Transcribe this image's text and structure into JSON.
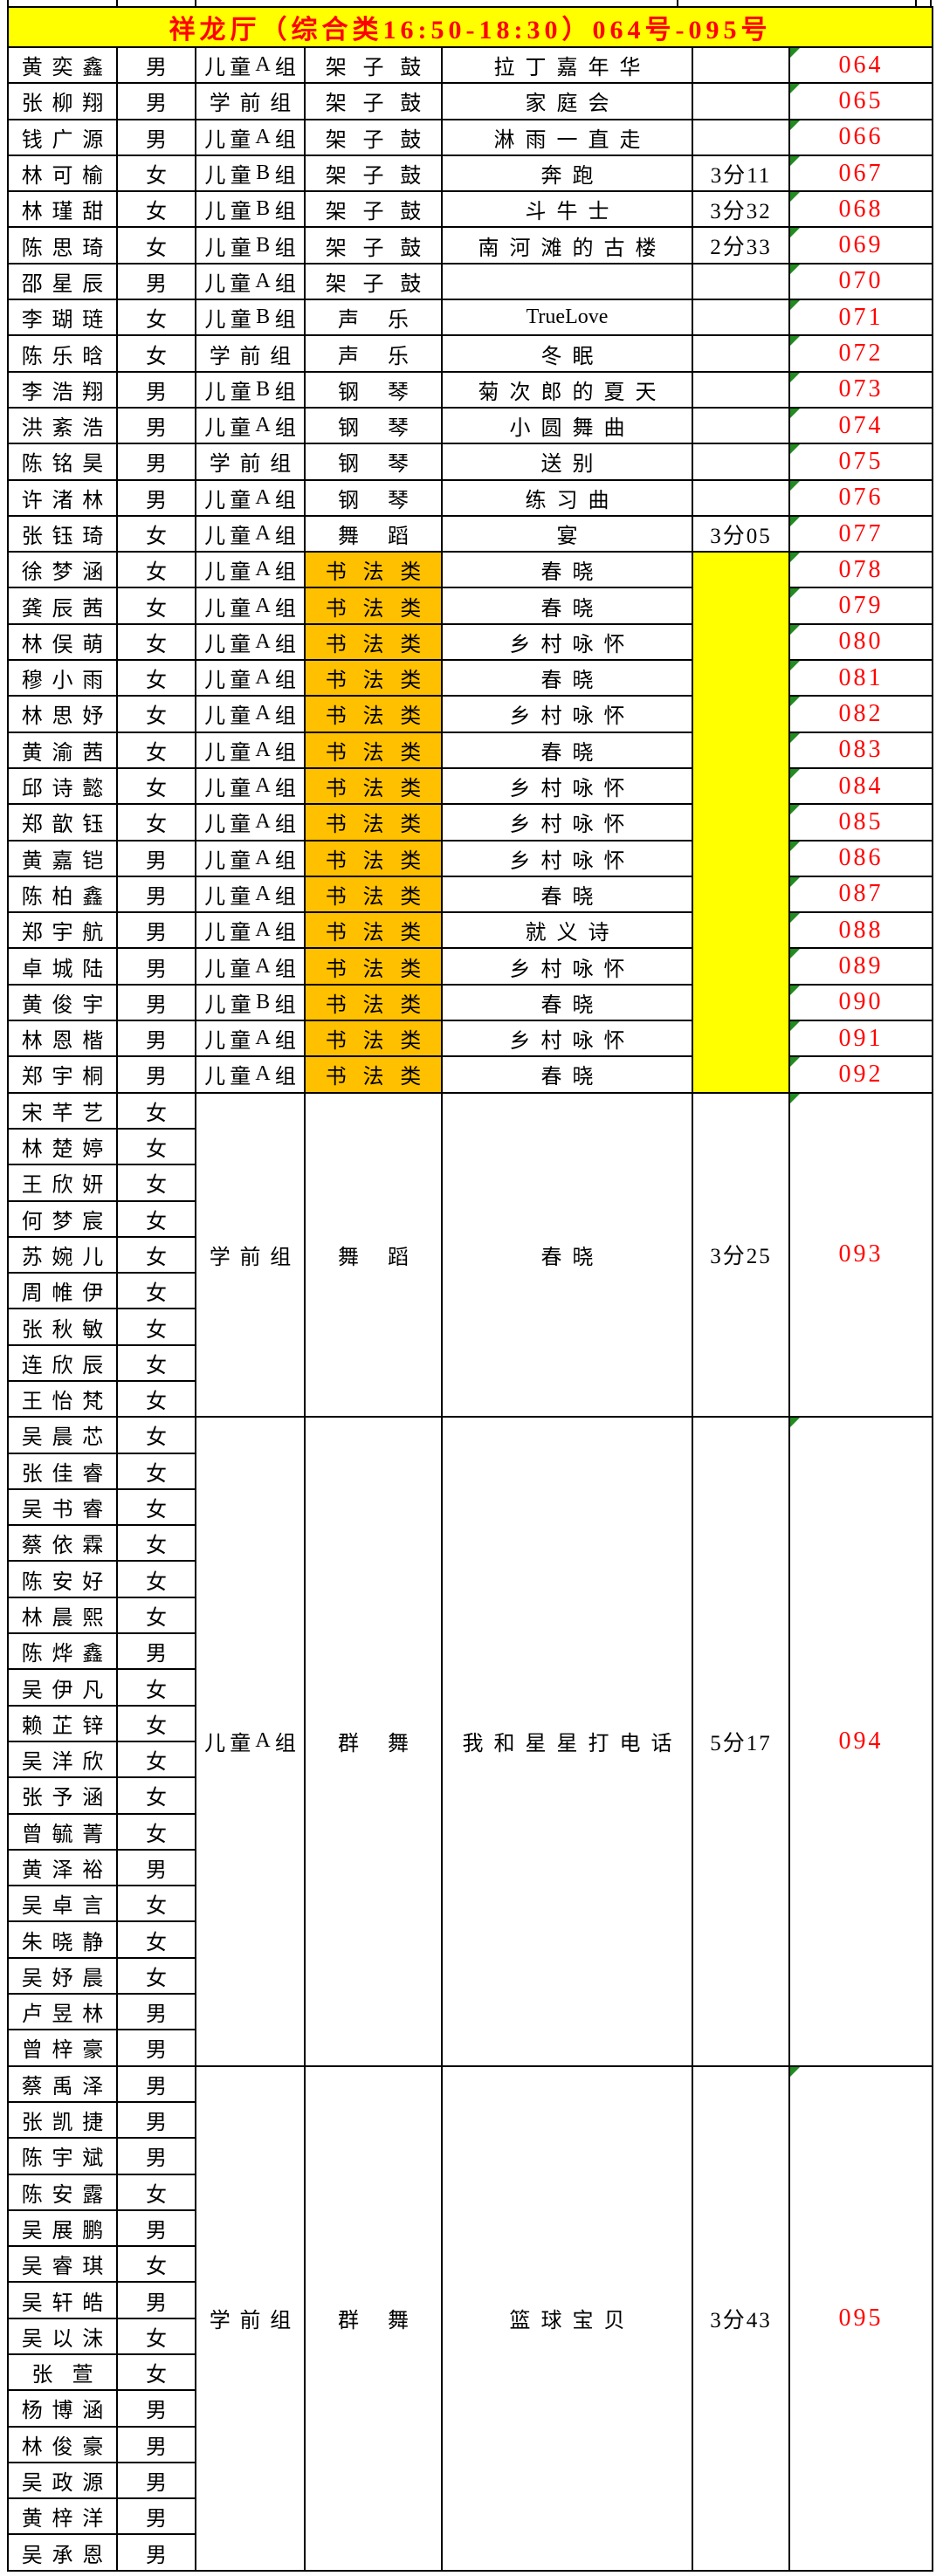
{
  "title": "祥龙厅（综合类16:50-18:30）064号-095号",
  "colors": {
    "title_bg": "#FFFF00",
    "title_text": "#FF0000",
    "entry_number_text": "#FF0000",
    "calligraphy_category_bg": "#FFC000",
    "merged_duration_bg": "#FFFF00",
    "corner_triangle": "#228B22",
    "grid_line": "#000000"
  },
  "sections": [
    {
      "id": "solo-064-077",
      "type": "solo",
      "rows": [
        {
          "name": "黄奕鑫",
          "gender": "男",
          "group": "儿童A组",
          "category": "架子鼓",
          "piece": "拉丁嘉年华",
          "duration": "",
          "number": "064"
        },
        {
          "name": "张柳翔",
          "gender": "男",
          "group": "学前组",
          "category": "架子鼓",
          "piece": "家庭会",
          "duration": "",
          "number": "065"
        },
        {
          "name": "钱广源",
          "gender": "男",
          "group": "儿童A组",
          "category": "架子鼓",
          "piece": "淋雨一直走",
          "duration": "",
          "number": "066"
        },
        {
          "name": "林可榆",
          "gender": "女",
          "group": "儿童B组",
          "category": "架子鼓",
          "piece": "奔跑",
          "duration": "3分11",
          "number": "067"
        },
        {
          "name": "林瑾甜",
          "gender": "女",
          "group": "儿童B组",
          "category": "架子鼓",
          "piece": "斗牛士",
          "duration": "3分32",
          "number": "068"
        },
        {
          "name": "陈思琦",
          "gender": "女",
          "group": "儿童B组",
          "category": "架子鼓",
          "piece": "南河滩的古楼",
          "duration": "2分33",
          "number": "069"
        },
        {
          "name": "邵星辰",
          "gender": "男",
          "group": "儿童A组",
          "category": "架子鼓",
          "piece": "",
          "duration": "",
          "number": "070"
        },
        {
          "name": "李瑚琏",
          "gender": "女",
          "group": "儿童B组",
          "category": "声乐",
          "piece": "TrueLove",
          "duration": "",
          "number": "071"
        },
        {
          "name": "陈乐晗",
          "gender": "女",
          "group": "学前组",
          "category": "声乐",
          "piece": "冬眠",
          "duration": "",
          "number": "072"
        },
        {
          "name": "李浩翔",
          "gender": "男",
          "group": "儿童B组",
          "category": "钢琴",
          "piece": "菊次郎的夏天",
          "duration": "",
          "number": "073"
        },
        {
          "name": "洪紊浩",
          "gender": "男",
          "group": "儿童A组",
          "category": "钢琴",
          "piece": "小圆舞曲",
          "duration": "",
          "number": "074"
        },
        {
          "name": "陈铭昊",
          "gender": "男",
          "group": "学前组",
          "category": "钢琴",
          "piece": "送别",
          "duration": "",
          "number": "075"
        },
        {
          "name": "许渚林",
          "gender": "男",
          "group": "儿童A组",
          "category": "钢琴",
          "piece": "练习曲",
          "duration": "",
          "number": "076"
        },
        {
          "name": "张钰琦",
          "gender": "女",
          "group": "儿童A组",
          "category": "舞蹈",
          "piece": "宴",
          "duration": "3分05",
          "number": "077"
        }
      ]
    },
    {
      "id": "calligraphy-078-092",
      "type": "calligraphy",
      "category_bg": "#FFC000",
      "merged_duration": {
        "text": "",
        "bg": "#FFFF00"
      },
      "rows": [
        {
          "name": "徐梦涵",
          "gender": "女",
          "group": "儿童A组",
          "category": "书法类",
          "piece": "春晓",
          "number": "078"
        },
        {
          "name": "龚辰茜",
          "gender": "女",
          "group": "儿童A组",
          "category": "书法类",
          "piece": "春晓",
          "number": "079"
        },
        {
          "name": "林俣萌",
          "gender": "女",
          "group": "儿童A组",
          "category": "书法类",
          "piece": "乡村咏怀",
          "number": "080"
        },
        {
          "name": "穆小雨",
          "gender": "女",
          "group": "儿童A组",
          "category": "书法类",
          "piece": "春晓",
          "number": "081"
        },
        {
          "name": "林思妤",
          "gender": "女",
          "group": "儿童A组",
          "category": "书法类",
          "piece": "乡村咏怀",
          "number": "082"
        },
        {
          "name": "黄渝茜",
          "gender": "女",
          "group": "儿童A组",
          "category": "书法类",
          "piece": "春晓",
          "number": "083"
        },
        {
          "name": "邱诗懿",
          "gender": "女",
          "group": "儿童A组",
          "category": "书法类",
          "piece": "乡村咏怀",
          "number": "084"
        },
        {
          "name": "郑歆钰",
          "gender": "女",
          "group": "儿童A组",
          "category": "书法类",
          "piece": "乡村咏怀",
          "number": "085"
        },
        {
          "name": "黄嘉铠",
          "gender": "男",
          "group": "儿童A组",
          "category": "书法类",
          "piece": "乡村咏怀",
          "number": "086"
        },
        {
          "name": "陈柏鑫",
          "gender": "男",
          "group": "儿童A组",
          "category": "书法类",
          "piece": "春晓",
          "number": "087"
        },
        {
          "name": "郑宇航",
          "gender": "男",
          "group": "儿童A组",
          "category": "书法类",
          "piece": "就义诗",
          "number": "088"
        },
        {
          "name": "卓城陆",
          "gender": "男",
          "group": "儿童A组",
          "category": "书法类",
          "piece": "乡村咏怀",
          "number": "089"
        },
        {
          "name": "黄俊宇",
          "gender": "男",
          "group": "儿童B组",
          "category": "书法类",
          "piece": "春晓",
          "number": "090"
        },
        {
          "name": "林恩楷",
          "gender": "男",
          "group": "儿童A组",
          "category": "书法类",
          "piece": "乡村咏怀",
          "number": "091"
        },
        {
          "name": "郑宇桐",
          "gender": "男",
          "group": "儿童A组",
          "category": "书法类",
          "piece": "春晓",
          "number": "092"
        }
      ]
    },
    {
      "id": "group-093",
      "type": "group",
      "performance": {
        "group": "学前组",
        "category": "舞蹈",
        "piece": "春晓",
        "duration": "3分25",
        "number": "093"
      },
      "members": [
        {
          "name": "宋芊艺",
          "gender": "女"
        },
        {
          "name": "林楚婷",
          "gender": "女"
        },
        {
          "name": "王欣妍",
          "gender": "女"
        },
        {
          "name": "何梦宸",
          "gender": "女"
        },
        {
          "name": "苏婉儿",
          "gender": "女"
        },
        {
          "name": "周帷伊",
          "gender": "女"
        },
        {
          "name": "张秋敏",
          "gender": "女"
        },
        {
          "name": "连欣辰",
          "gender": "女"
        },
        {
          "name": "王怡梵",
          "gender": "女"
        }
      ]
    },
    {
      "id": "group-094",
      "type": "group",
      "performance": {
        "group": "儿童A组",
        "category": "群舞",
        "piece": "我和星星打电话",
        "duration": "5分17",
        "number": "094"
      },
      "members": [
        {
          "name": "吴晨芯",
          "gender": "女"
        },
        {
          "name": "张佳睿",
          "gender": "女"
        },
        {
          "name": "吴书睿",
          "gender": "女"
        },
        {
          "name": "蔡依霖",
          "gender": "女"
        },
        {
          "name": "陈安好",
          "gender": "女"
        },
        {
          "name": "林晨熙",
          "gender": "女"
        },
        {
          "name": "陈烨鑫",
          "gender": "男"
        },
        {
          "name": "吴伊凡",
          "gender": "女"
        },
        {
          "name": "赖芷锌",
          "gender": "女"
        },
        {
          "name": "吴洋欣",
          "gender": "女"
        },
        {
          "name": "张予涵",
          "gender": "女"
        },
        {
          "name": "曾毓菁",
          "gender": "女"
        },
        {
          "name": "黄泽裕",
          "gender": "男"
        },
        {
          "name": "吴卓言",
          "gender": "女"
        },
        {
          "name": "朱晓静",
          "gender": "女"
        },
        {
          "name": "吴妤晨",
          "gender": "女"
        },
        {
          "name": "卢昱林",
          "gender": "男"
        },
        {
          "name": "曾梓豪",
          "gender": "男"
        }
      ]
    },
    {
      "id": "group-095",
      "type": "group",
      "performance": {
        "group": "学前组",
        "category": "群舞",
        "piece": "篮球宝贝",
        "duration": "3分43",
        "number": "095"
      },
      "members": [
        {
          "name": "蔡禹泽",
          "gender": "男"
        },
        {
          "name": "张凯捷",
          "gender": "男"
        },
        {
          "name": "陈宇斌",
          "gender": "男"
        },
        {
          "name": "陈安露",
          "gender": "女"
        },
        {
          "name": "吴展鹏",
          "gender": "男"
        },
        {
          "name": "吴睿琪",
          "gender": "女"
        },
        {
          "name": "吴轩皓",
          "gender": "男"
        },
        {
          "name": "吴以沫",
          "gender": "女"
        },
        {
          "name": "张萱",
          "gender": "女"
        },
        {
          "name": "杨博涵",
          "gender": "男"
        },
        {
          "name": "林俊豪",
          "gender": "男"
        },
        {
          "name": "吴政源",
          "gender": "男"
        },
        {
          "name": "黄梓洋",
          "gender": "男"
        },
        {
          "name": "吴承恩",
          "gender": "男"
        }
      ]
    }
  ]
}
